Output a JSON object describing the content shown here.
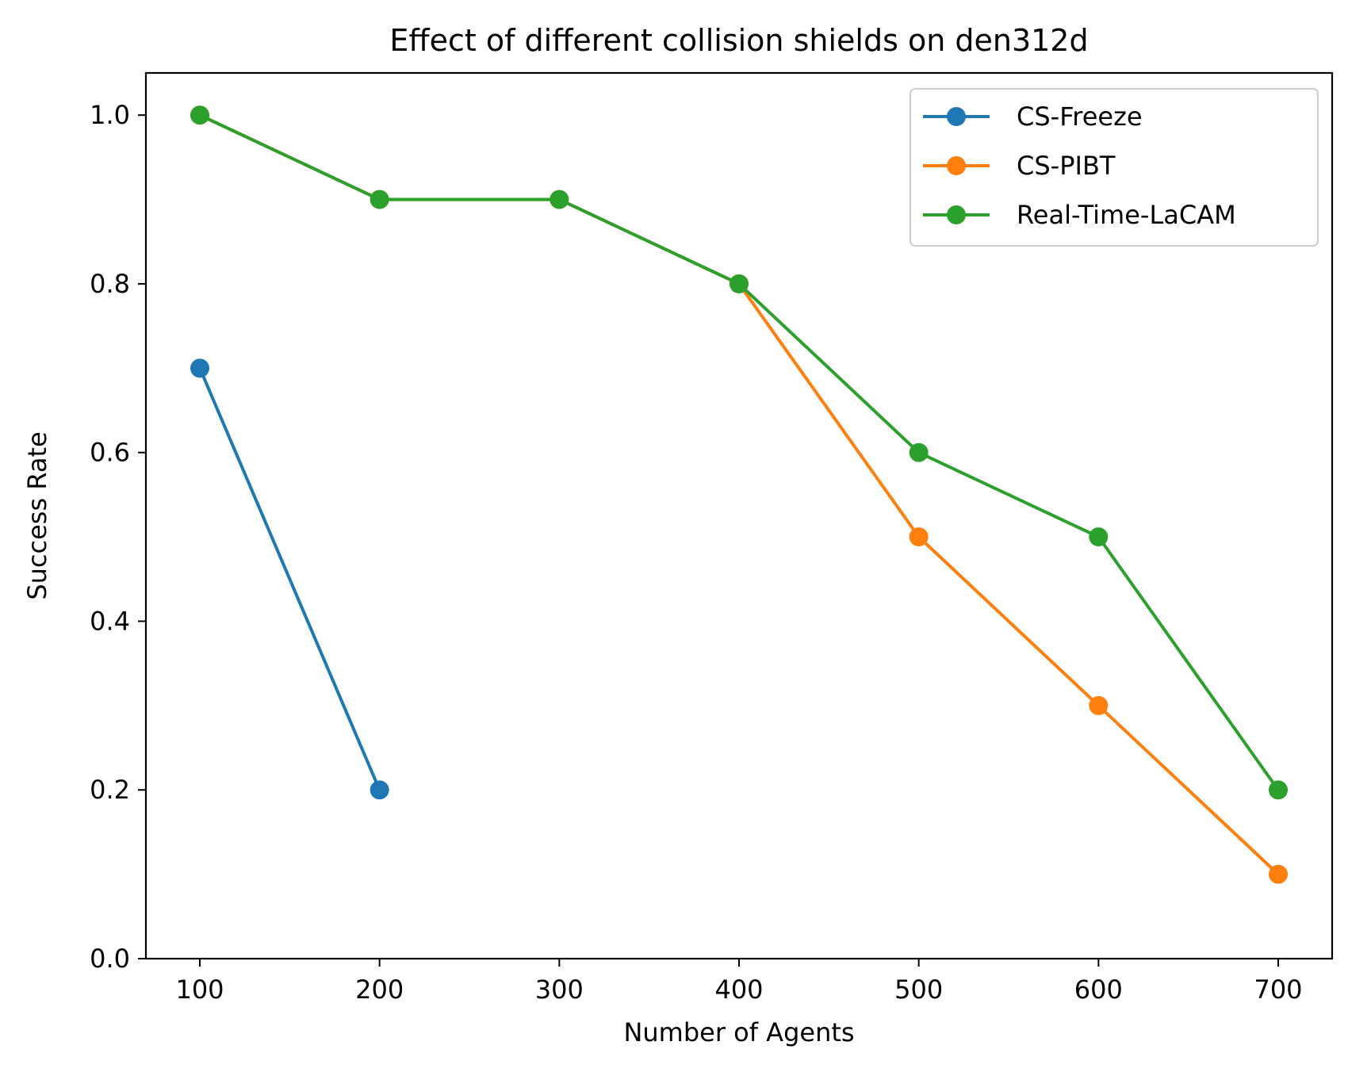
{
  "chart_data": {
    "type": "line",
    "title": "Effect of different collision shields on den312d",
    "xlabel": "Number of Agents",
    "ylabel": "Success Rate",
    "xlim": [
      70,
      730
    ],
    "ylim": [
      0,
      1.05
    ],
    "xticks": [
      100,
      200,
      300,
      400,
      500,
      600,
      700
    ],
    "yticks": [
      0.0,
      0.2,
      0.4,
      0.6,
      0.8,
      1.0
    ],
    "xtick_labels": [
      "100",
      "200",
      "300",
      "400",
      "500",
      "600",
      "700"
    ],
    "ytick_labels": [
      "0.0",
      "0.2",
      "0.4",
      "0.6",
      "0.8",
      "1.0"
    ],
    "grid": false,
    "legend_position": "top-right",
    "series": [
      {
        "name": "CS-Freeze",
        "color": "#1f77b4",
        "x": [
          100,
          200
        ],
        "y": [
          0.7,
          0.2
        ]
      },
      {
        "name": "CS-PIBT",
        "color": "#ff7f0e",
        "x": [
          100,
          200,
          300,
          400,
          500,
          600,
          700
        ],
        "y": [
          1.0,
          0.9,
          0.9,
          0.8,
          0.5,
          0.3,
          0.1
        ]
      },
      {
        "name": "Real-Time-LaCAM",
        "color": "#2ca02c",
        "x": [
          100,
          200,
          300,
          400,
          500,
          600,
          700
        ],
        "y": [
          1.0,
          0.9,
          0.9,
          0.8,
          0.6,
          0.5,
          0.2
        ]
      }
    ]
  }
}
